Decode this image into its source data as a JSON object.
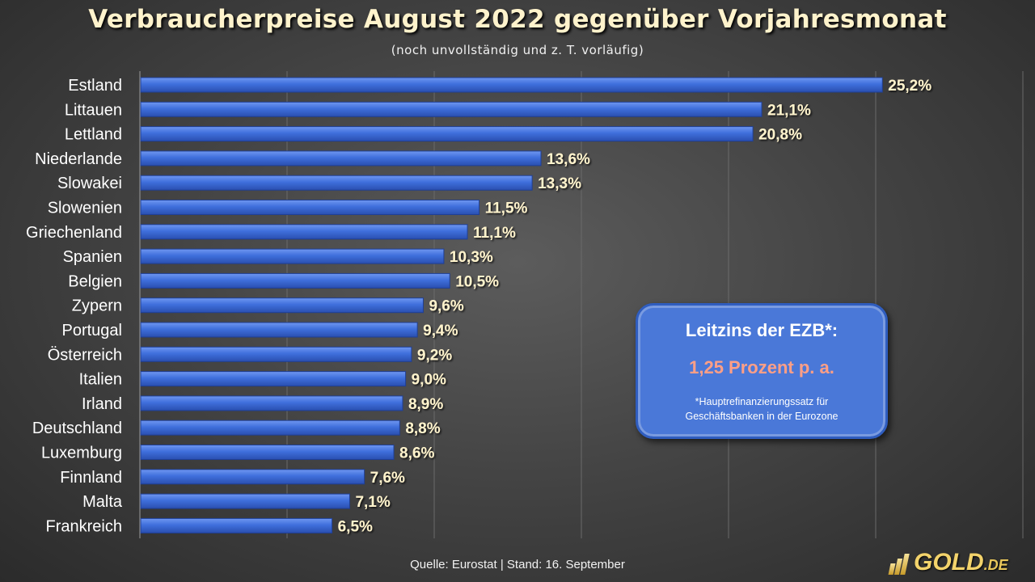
{
  "title": "Verbraucherpreise August 2022 gegenüber Vorjahresmonat",
  "subtitle": "(noch unvollständig und z. T. vorläufig)",
  "chart_data": {
    "type": "bar",
    "orientation": "horizontal",
    "categories": [
      "Estland",
      "Littauen",
      "Lettland",
      "Niederlande",
      "Slowakei",
      "Slowenien",
      "Griechenland",
      "Spanien",
      "Belgien",
      "Zypern",
      "Portugal",
      "Österreich",
      "Italien",
      "Irland",
      "Deutschland",
      "Luxemburg",
      "Finnland",
      "Malta",
      "Frankreich"
    ],
    "values": [
      25.2,
      21.1,
      20.8,
      13.6,
      13.3,
      11.5,
      11.1,
      10.3,
      10.5,
      9.6,
      9.4,
      9.2,
      9.0,
      8.9,
      8.8,
      8.6,
      7.6,
      7.1,
      6.5
    ],
    "value_labels": [
      "25,2%",
      "21,1%",
      "20,8%",
      "13,6%",
      "13,3%",
      "11,5%",
      "11,1%",
      "10,3%",
      "10,5%",
      "9,6%",
      "9,4%",
      "9,2%",
      "9,0%",
      "8,9%",
      "8,8%",
      "8,6%",
      "7,6%",
      "7,1%",
      "6,5%"
    ],
    "unit": "%",
    "xlim": [
      0,
      30
    ],
    "grid": "vertical",
    "bar_color": "#3f6fdc",
    "label_color": "#fff3cc"
  },
  "infobox": {
    "heading": "Leitzins der EZB*:",
    "value": "1,25 Prozent p. a.",
    "note_line1": "*Hauptrefinanzierungssatz für",
    "note_line2": "Geschäftsbanken in der Eurozone",
    "value_color": "#ff9f86"
  },
  "source": "Quelle: Eurostat | Stand: 16. September",
  "logo": {
    "name": "GOLD",
    "suffix": ".DE"
  }
}
